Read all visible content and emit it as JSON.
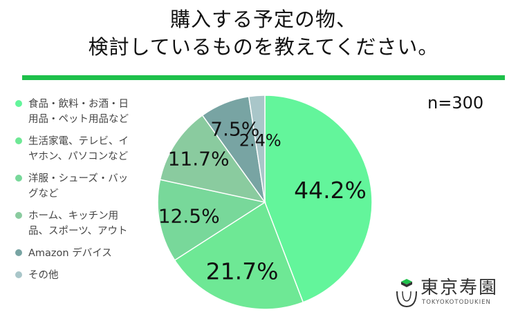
{
  "title": {
    "line1": "購入する予定の物、",
    "line2": "検討しているものを教えてください。"
  },
  "sample_size": "n=300",
  "logo": {
    "name": "東京寿園",
    "sub": "TOKYOKOTODUKIEN"
  },
  "colors": {
    "accent_bar": "#1ec04a"
  },
  "chart_data": {
    "type": "pie",
    "title": "購入する予定の物、検討しているものを教えてください。",
    "n": 300,
    "legend_position": "left",
    "categories": [
      "食品・飲料・お酒・日用品・ペット用品など",
      "生活家電、テレビ、イヤホン、パソコンなど",
      "洋服・シューズ・バッグなど",
      "ホーム、キッチン用品、スポーツ、アウト",
      "Amazon デバイス",
      "その他"
    ],
    "legend_labels": [
      "食品・飲料・お酒・日\n用品・ペット用品など",
      "生活家電、テレビ、イ\nヤホン、パソコンなど",
      "洋服・シューズ・バッ\nグなど",
      "ホーム、キッチン用\n品、スポーツ、アウト",
      "Amazon デバイス",
      "その他"
    ],
    "values": [
      44.2,
      21.7,
      12.5,
      11.7,
      7.5,
      2.4
    ],
    "data_labels": [
      "44.2%",
      "21.7%",
      "12.5%",
      "11.7%",
      "7.5%",
      "2.4%"
    ],
    "colors": [
      "#63f59b",
      "#6ee895",
      "#78d89a",
      "#8acb9f",
      "#78a4a3",
      "#a9c6c9"
    ]
  }
}
